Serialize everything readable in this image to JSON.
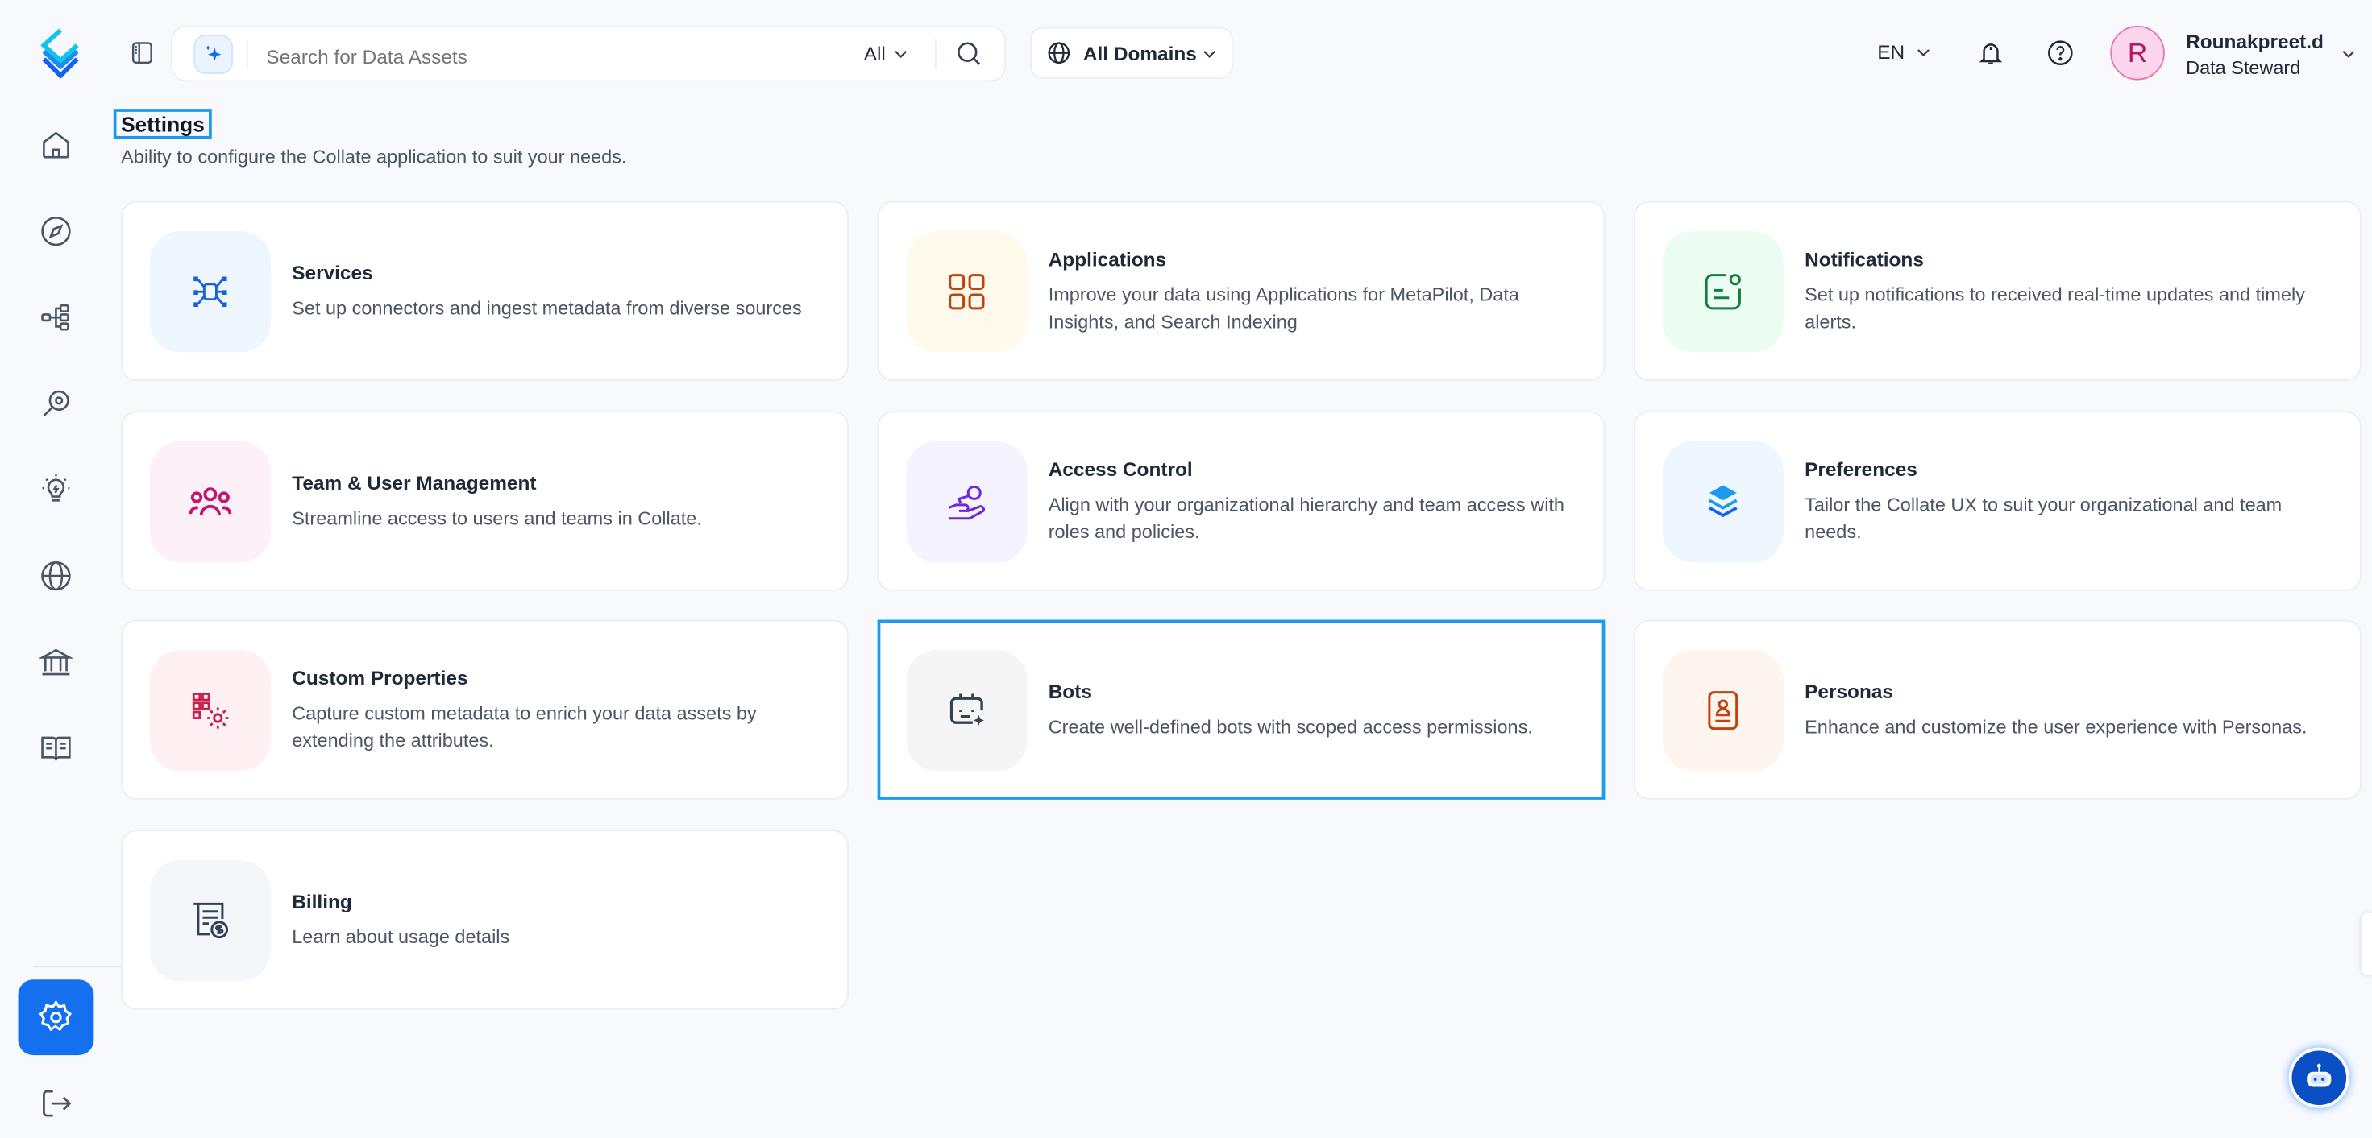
{
  "colors": {
    "accent": "#1470ef",
    "selected_border": "#1a9bf0",
    "avatar_bg": "#fdd5ec",
    "avatar_text": "#b8165f"
  },
  "sidebar": {
    "items": [
      {
        "name": "home",
        "icon": "home-icon"
      },
      {
        "name": "explore",
        "icon": "compass-icon"
      },
      {
        "name": "lineage",
        "icon": "lineage-icon"
      },
      {
        "name": "observability",
        "icon": "observability-icon"
      },
      {
        "name": "insights",
        "icon": "lightbulb-icon"
      },
      {
        "name": "domains",
        "icon": "globe-icon"
      },
      {
        "name": "governance",
        "icon": "bank-icon"
      },
      {
        "name": "glossary",
        "icon": "book-icon"
      }
    ],
    "settings_icon": "gear-icon",
    "logout_icon": "logout-icon"
  },
  "header": {
    "search_placeholder": "Search for Data Assets",
    "search_scope": "All",
    "domain": "All Domains",
    "language": "EN",
    "user": {
      "initial": "R",
      "name": "Rounakpreet.d",
      "role": "Data Steward"
    }
  },
  "page": {
    "title": "Settings",
    "subtitle": "Ability to configure the Collate application to suit your needs."
  },
  "cards": [
    {
      "title": "Services",
      "desc": "Set up connectors and ingest metadata from diverse sources",
      "icon": "services-icon",
      "bg": "#eef6ff",
      "color": "#1d5fd6"
    },
    {
      "title": "Applications",
      "desc": "Improve your data using Applications for MetaPilot, Data Insights, and Search Indexing",
      "icon": "apps-grid-icon",
      "bg": "#fffaeb",
      "color": "#c2410c"
    },
    {
      "title": "Notifications",
      "desc": "Set up notifications to received real-time updates and timely alerts.",
      "icon": "notification-icon",
      "bg": "#ecfdf3",
      "color": "#15803d"
    },
    {
      "title": "Team & User Management",
      "desc": "Streamline access to users and teams in Collate.",
      "icon": "team-icon",
      "bg": "#fdf0f8",
      "color": "#c0166b"
    },
    {
      "title": "Access Control",
      "desc": "Align with your organizational hierarchy and team access with roles and policies.",
      "icon": "access-key-icon",
      "bg": "#f4f3ff",
      "color": "#6d28d9"
    },
    {
      "title": "Preferences",
      "desc": "Tailor the Collate UX to suit your organizational and team needs.",
      "icon": "preferences-layers-icon",
      "bg": "#eef6ff",
      "color": "#1a9bf0"
    },
    {
      "title": "Custom Properties",
      "desc": "Capture custom metadata to enrich your data assets by extending the attributes.",
      "icon": "custom-properties-icon",
      "bg": "#fff1f3",
      "color": "#c81e4a"
    },
    {
      "title": "Bots",
      "desc": "Create well-defined bots with scoped access permissions.",
      "icon": "bot-icon",
      "bg": "#f5f5f6",
      "color": "#374151",
      "selected": true
    },
    {
      "title": "Personas",
      "desc": "Enhance and customize the user experience with Personas.",
      "icon": "persona-icon",
      "bg": "#fef6ee",
      "color": "#c2410c"
    },
    {
      "title": "Billing",
      "desc": "Learn about usage details",
      "icon": "billing-icon",
      "bg": "#f4f6fa",
      "color": "#334155"
    }
  ]
}
